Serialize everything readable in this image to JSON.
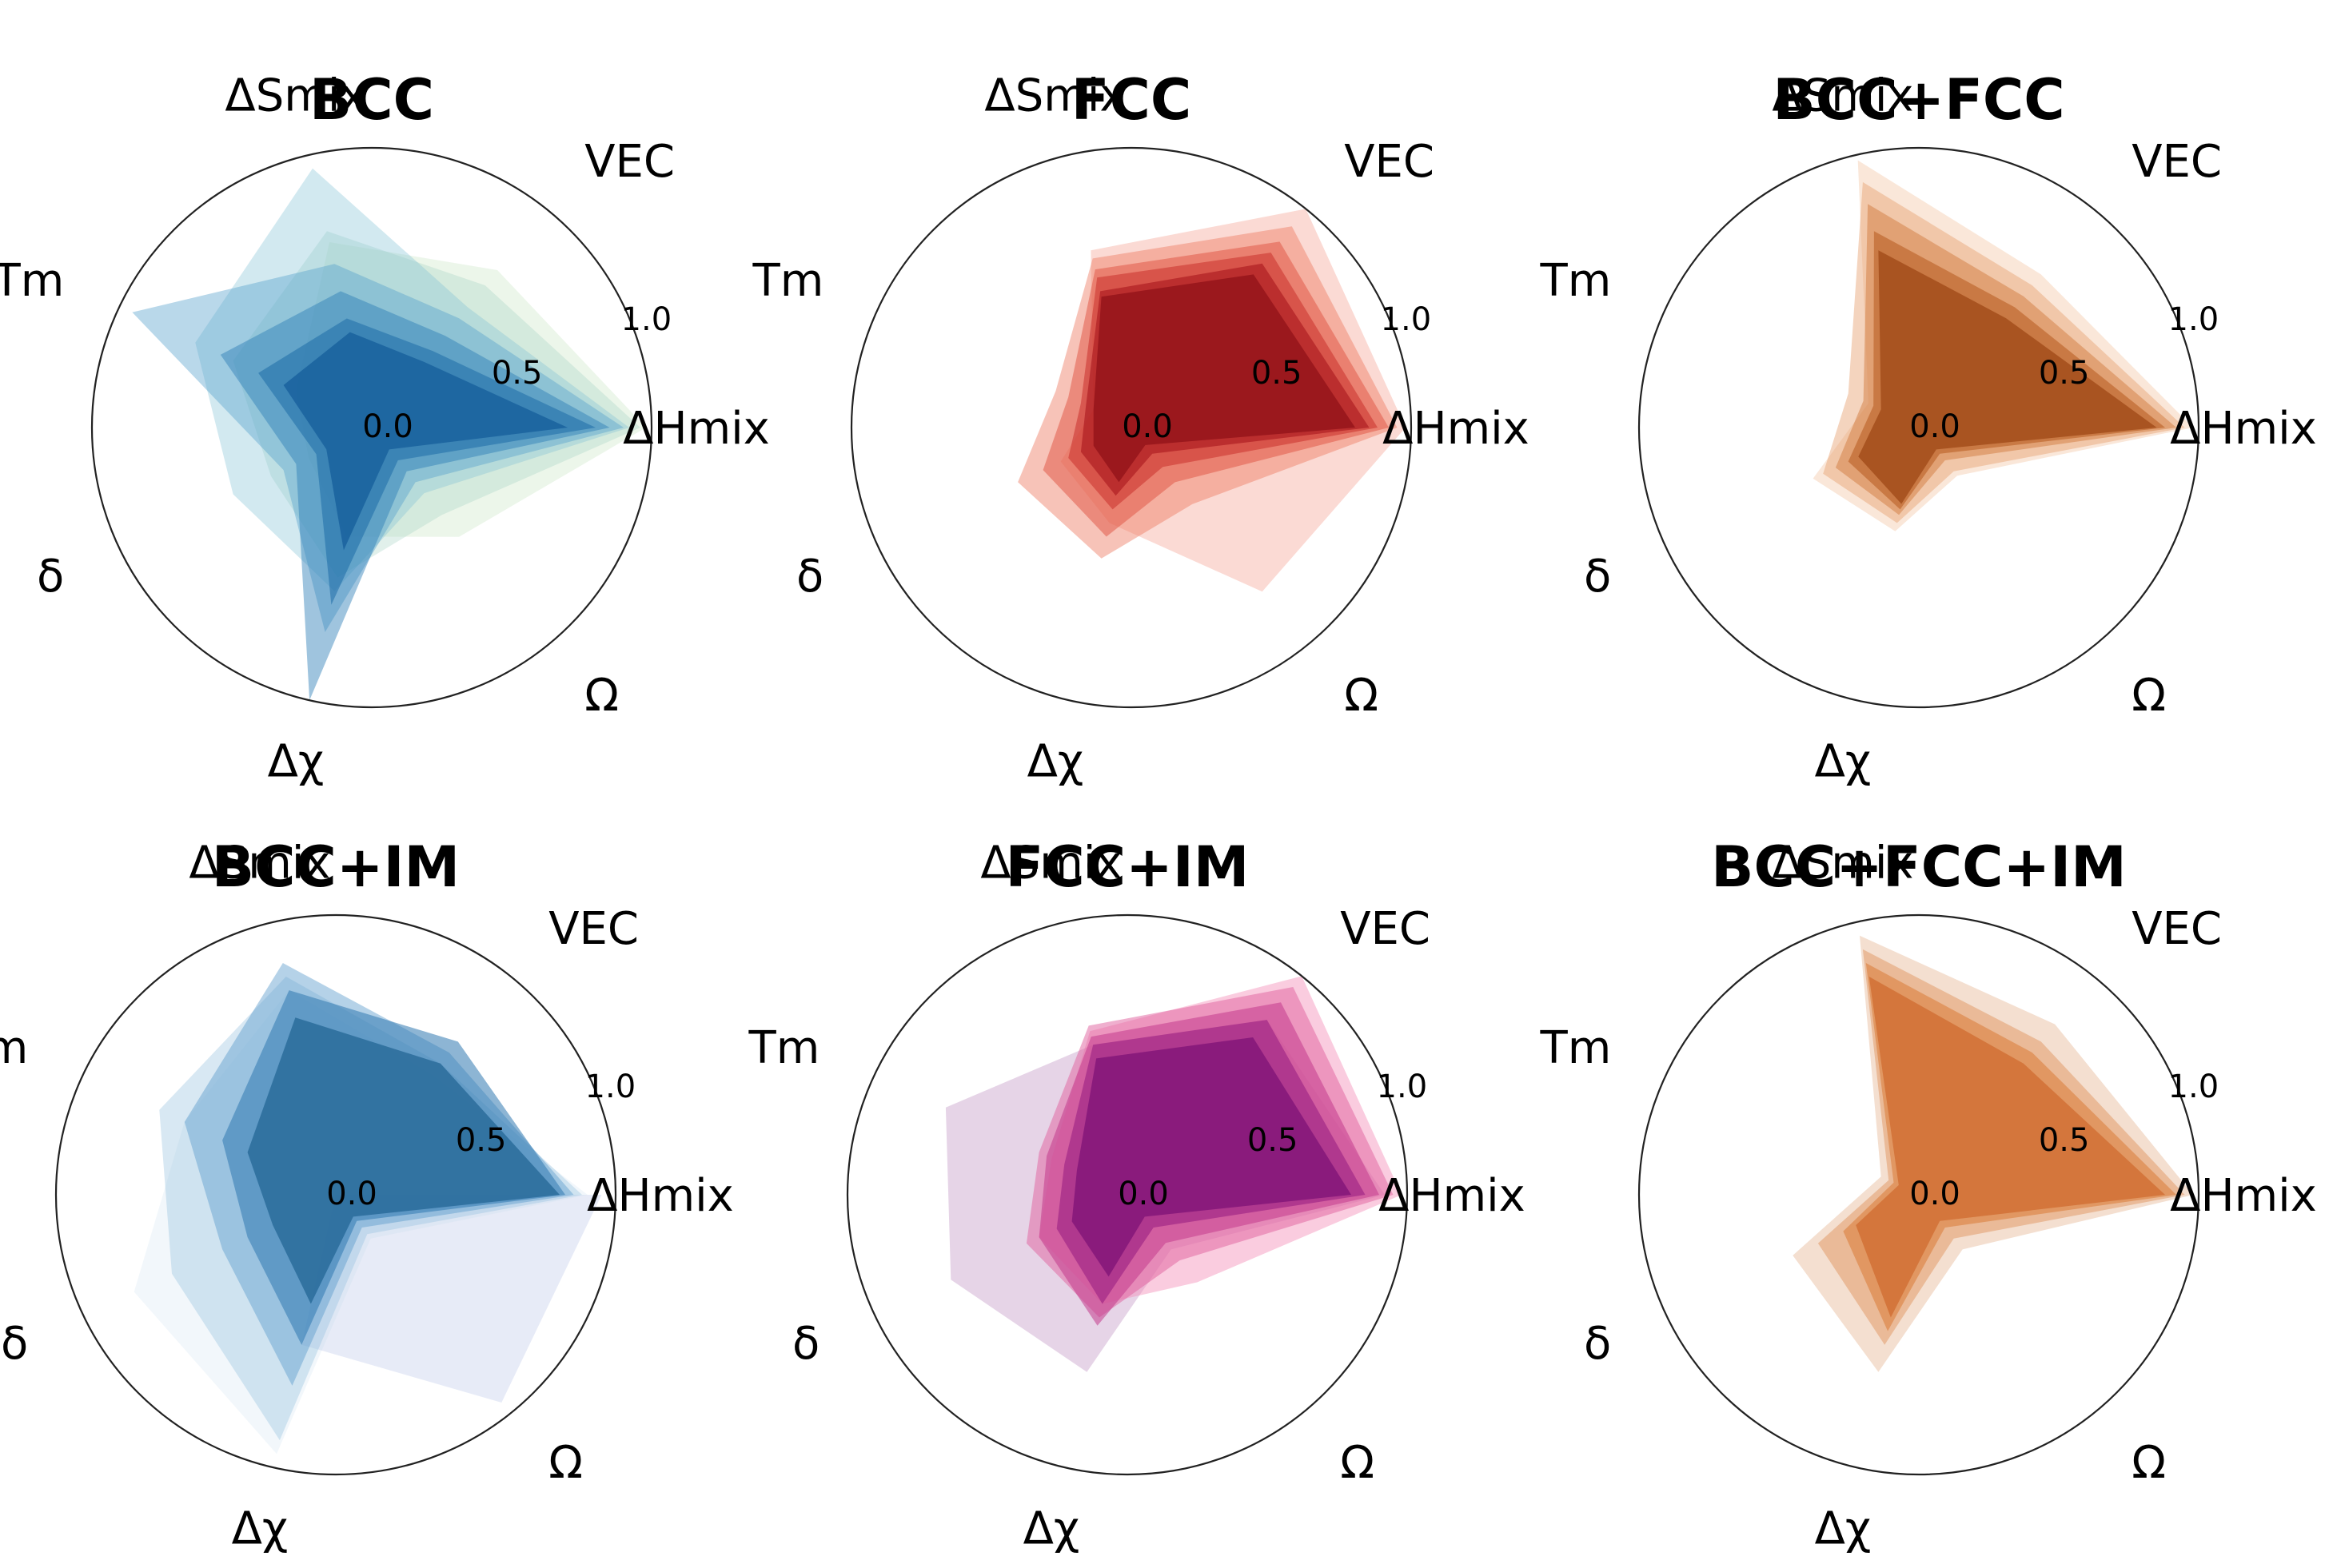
{
  "chart_data": [
    {
      "type": "radar",
      "title": "BCC",
      "axes": [
        "ΔHmix",
        "VEC",
        "ΔSmix",
        "Tm",
        "δ",
        "Δχ",
        "Ω"
      ],
      "r_ticks": [
        "0.0",
        "0.5",
        "1.0"
      ],
      "r_range": [
        0,
        1
      ],
      "colors": [
        "#c8e6c4",
        "#a8d5c6",
        "#7fbfd3",
        "#4f9dcb",
        "#2a7cb6",
        "#1566a3",
        "#0b5394"
      ],
      "series": [
        {
          "values": [
            0.98,
            0.72,
            0.68,
            0.3,
            0.25,
            0.4,
            0.5
          ],
          "opacity": 0.35
        },
        {
          "values": [
            0.96,
            0.65,
            0.72,
            0.55,
            0.4,
            0.55,
            0.4
          ],
          "opacity": 0.35
        },
        {
          "values": [
            0.92,
            0.55,
            0.95,
            0.7,
            0.55,
            0.6,
            0.3
          ],
          "opacity": 0.35
        },
        {
          "values": [
            0.9,
            0.5,
            0.6,
            0.95,
            0.35,
            0.75,
            0.25
          ],
          "opacity": 0.4
        },
        {
          "values": [
            0.85,
            0.42,
            0.5,
            0.6,
            0.3,
            1.0,
            0.2
          ],
          "opacity": 0.45
        },
        {
          "values": [
            0.8,
            0.35,
            0.4,
            0.45,
            0.22,
            0.65,
            0.15
          ],
          "opacity": 0.5
        },
        {
          "values": [
            0.7,
            0.3,
            0.35,
            0.35,
            0.18,
            0.45,
            0.1
          ],
          "opacity": 0.6
        }
      ]
    },
    {
      "type": "radar",
      "title": "FCC",
      "axes": [
        "ΔHmix",
        "VEC",
        "ΔSmix",
        "Tm",
        "δ",
        "Δχ",
        "Ω"
      ],
      "r_ticks": [
        "0.0",
        "0.5",
        "1.0"
      ],
      "r_range": [
        0,
        1
      ],
      "colors": [
        "#f4a393",
        "#ee7a62",
        "#e0513f",
        "#c8302b",
        "#a8161d",
        "#8d0f17",
        "#7a0b12"
      ],
      "series": [
        {
          "values": [
            0.98,
            1.0,
            0.65,
            0.15,
            0.28,
            0.35,
            0.75
          ],
          "opacity": 0.4
        },
        {
          "values": [
            0.95,
            0.92,
            0.62,
            0.3,
            0.45,
            0.48,
            0.35
          ],
          "opacity": 0.45
        },
        {
          "values": [
            0.92,
            0.85,
            0.58,
            0.25,
            0.35,
            0.4,
            0.25
          ],
          "opacity": 0.5
        },
        {
          "values": [
            0.88,
            0.8,
            0.55,
            0.2,
            0.25,
            0.3,
            0.18
          ],
          "opacity": 0.55
        },
        {
          "values": [
            0.85,
            0.75,
            0.5,
            0.18,
            0.2,
            0.25,
            0.12
          ],
          "opacity": 0.6
        },
        {
          "values": [
            0.8,
            0.7,
            0.48,
            0.15,
            0.15,
            0.2,
            0.08
          ],
          "opacity": 0.7
        }
      ]
    },
    {
      "type": "radar",
      "title": "BCC+FCC",
      "axes": [
        "ΔHmix",
        "VEC",
        "ΔSmix",
        "Tm",
        "δ",
        "Δχ",
        "Ω"
      ],
      "r_ticks": [
        "0.0",
        "0.5",
        "1.0"
      ],
      "r_range": [
        0,
        1
      ],
      "colors": [
        "#f3c4a0",
        "#e6a06e",
        "#d27c3f",
        "#b65a1e",
        "#984010",
        "#7c2e08"
      ],
      "series": [
        {
          "values": [
            0.98,
            0.7,
            0.98,
            0.2,
            0.42,
            0.38,
            0.22
          ],
          "opacity": 0.4
        },
        {
          "values": [
            0.95,
            0.65,
            0.9,
            0.28,
            0.38,
            0.35,
            0.2
          ],
          "opacity": 0.45
        },
        {
          "values": [
            0.92,
            0.6,
            0.82,
            0.22,
            0.33,
            0.32,
            0.15
          ],
          "opacity": 0.5
        },
        {
          "values": [
            0.88,
            0.55,
            0.72,
            0.18,
            0.28,
            0.3,
            0.12
          ],
          "opacity": 0.55
        },
        {
          "values": [
            0.85,
            0.5,
            0.65,
            0.15,
            0.24,
            0.28,
            0.1
          ],
          "opacity": 0.65
        }
      ]
    },
    {
      "type": "radar",
      "title": "BCC+IM",
      "axes": [
        "ΔHmix",
        "VEC",
        "ΔSmix",
        "Tm",
        "δ",
        "Δχ",
        "Ω"
      ],
      "r_ticks": [
        "0.0",
        "0.5",
        "1.0"
      ],
      "r_range": [
        0,
        1
      ],
      "colors": [
        "#dfe4f4",
        "#bcd6ea",
        "#8fbedd",
        "#5b9ccd",
        "#2f78b0",
        "#1a5d8e",
        "#0f4a72"
      ],
      "series": [
        {
          "values": [
            0.95,
            0.0,
            0.0,
            0.0,
            0.0,
            0.55,
            0.95
          ],
          "opacity": 0.75
        },
        {
          "values": [
            0.9,
            0.55,
            0.75,
            0.6,
            0.8,
            0.95,
            0.2
          ],
          "opacity": 0.2
        },
        {
          "values": [
            0.88,
            0.6,
            0.8,
            0.7,
            0.65,
            0.9,
            0.18
          ],
          "opacity": 0.35
        },
        {
          "values": [
            0.85,
            0.65,
            0.85,
            0.6,
            0.45,
            0.7,
            0.15
          ],
          "opacity": 0.45
        },
        {
          "values": [
            0.82,
            0.7,
            0.75,
            0.45,
            0.35,
            0.55,
            0.12
          ],
          "opacity": 0.55
        },
        {
          "values": [
            0.8,
            0.6,
            0.65,
            0.35,
            0.25,
            0.4,
            0.1
          ],
          "opacity": 0.65
        }
      ]
    },
    {
      "type": "radar",
      "title": "FCC+IM",
      "axes": [
        "ΔHmix",
        "VEC",
        "ΔSmix",
        "Tm",
        "δ",
        "Δχ",
        "Ω"
      ],
      "r_ticks": [
        "0.0",
        "0.5",
        "1.0"
      ],
      "r_range": [
        0,
        1
      ],
      "colors": [
        "#c79fc9",
        "#f48fb8",
        "#e0609e",
        "#c23a8d",
        "#9a1f82",
        "#7a0f75",
        "#5e0a66"
      ],
      "series": [
        {
          "values": [
            0.92,
            0.8,
            0.55,
            0.72,
            0.7,
            0.65,
            0.25
          ],
          "opacity": 0.45
        },
        {
          "values": [
            0.98,
            1.0,
            0.6,
            0.3,
            0.35,
            0.4,
            0.4
          ],
          "opacity": 0.45
        },
        {
          "values": [
            0.95,
            0.95,
            0.62,
            0.35,
            0.4,
            0.45,
            0.3
          ],
          "opacity": 0.5
        },
        {
          "values": [
            0.9,
            0.88,
            0.58,
            0.32,
            0.35,
            0.48,
            0.22
          ],
          "opacity": 0.55
        },
        {
          "values": [
            0.85,
            0.8,
            0.55,
            0.25,
            0.28,
            0.4,
            0.15
          ],
          "opacity": 0.6
        },
        {
          "values": [
            0.8,
            0.72,
            0.5,
            0.2,
            0.22,
            0.3,
            0.1
          ],
          "opacity": 0.7
        }
      ]
    },
    {
      "type": "radar",
      "title": "BCC+FCC+IM",
      "axes": [
        "ΔHmix",
        "VEC",
        "ΔSmix",
        "Tm",
        "δ",
        "Δχ",
        "Ω"
      ],
      "r_ticks": [
        "0.0",
        "0.5",
        "1.0"
      ],
      "r_range": [
        0,
        1
      ],
      "colors": [
        "#e6b896",
        "#e09660",
        "#d97a36",
        "#cc6428",
        "#bc5220"
      ],
      "series": [
        {
          "values": [
            0.98,
            0.78,
            0.95,
            0.15,
            0.5,
            0.65,
            0.25
          ],
          "opacity": 0.45
        },
        {
          "values": [
            0.95,
            0.7,
            0.9,
            0.12,
            0.4,
            0.55,
            0.2
          ],
          "opacity": 0.5
        },
        {
          "values": [
            0.92,
            0.65,
            0.85,
            0.1,
            0.3,
            0.5,
            0.15
          ],
          "opacity": 0.55
        },
        {
          "values": [
            0.88,
            0.6,
            0.8,
            0.08,
            0.25,
            0.45,
            0.12
          ],
          "opacity": 0.65
        }
      ]
    }
  ]
}
